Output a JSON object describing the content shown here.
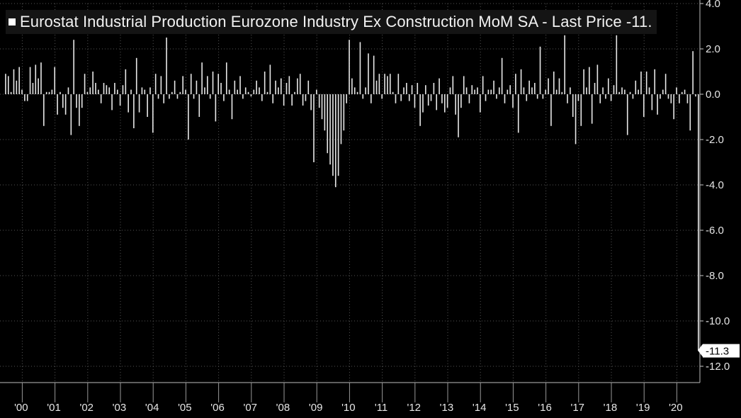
{
  "legend": {
    "text": "Eurostat Industrial Production Eurozone Industry Ex Construction MoM SA - Last Price -11."
  },
  "colors": {
    "background": "#000000",
    "bars": "#e8e8e8",
    "grid": "#555555",
    "last_label_bg": "#ffffff"
  },
  "chart_data": {
    "type": "bar",
    "title": "Eurostat Industrial Production Eurozone Industry Ex Construction MoM SA - Last Price -11.",
    "ylim": [
      -12.8,
      4.0
    ],
    "yticks": [
      {
        "value": 4.0,
        "label": "4.0"
      },
      {
        "value": 2.0,
        "label": "2.0"
      },
      {
        "value": 0.0,
        "label": "0.0"
      },
      {
        "value": -2.0,
        "label": "-2.0"
      },
      {
        "value": -4.0,
        "label": "-4.0"
      },
      {
        "value": -6.0,
        "label": "-6.0"
      },
      {
        "value": -8.0,
        "label": "-8.0"
      },
      {
        "value": -10.0,
        "label": "-10.0"
      },
      {
        "value": -12.0,
        "label": "-12.0"
      }
    ],
    "xticks": [
      "'00",
      "'01",
      "'02",
      "'03",
      "'04",
      "'05",
      "'06",
      "'07",
      "'08",
      "'09",
      "'10",
      "'11",
      "'12",
      "'13",
      "'14",
      "'15",
      "'16",
      "'17",
      "'18",
      "'19",
      "'20"
    ],
    "grid": true,
    "y_axis_side": "right",
    "last_value": {
      "value": -11.3,
      "label": "-11.3"
    },
    "start": "2000-01",
    "values": [
      0.9,
      0.8,
      0.1,
      1.1,
      0.6,
      1.2,
      0.2,
      -0.3,
      -0.3,
      1.2,
      0.5,
      1.3,
      0.7,
      1.4,
      -1.4,
      0.1,
      0.1,
      0.2,
      1.2,
      -0.9,
      0.1,
      -0.6,
      -0.9,
      0.3,
      -1.8,
      2.4,
      -0.6,
      -1.4,
      -0.6,
      0.9,
      0.1,
      0.3,
      1.0,
      0.5,
      0.2,
      -0.4,
      0.5,
      0.4,
      0.3,
      -0.7,
      0.5,
      0.2,
      -0.5,
      0.4,
      1.1,
      -0.8,
      0.2,
      -1.5,
      1.6,
      -0.8,
      0.3,
      0.2,
      -1.0,
      0.3,
      -1.7,
      0.9,
      -0.2,
      0.8,
      -0.4,
      2.5,
      -0.2,
      0.1,
      0.6,
      -0.2,
      0.1,
      0.8,
      0.2,
      -2.0,
      0.9,
      -0.2,
      0.6,
      -1.0,
      1.4,
      0.3,
      0.8,
      -0.2,
      1.0,
      -1.2,
      0.9,
      0.5,
      -0.3,
      1.4,
      0.2,
      -1.1,
      0.6,
      0.2,
      0.8,
      -0.2,
      0.3,
      0.1,
      -0.1,
      0.2,
      0.6,
      0.3,
      -0.3,
      1.0,
      0.1,
      1.3,
      -0.4,
      0.6,
      0.3,
      0.7,
      -0.5,
      0.5,
      0.8,
      -0.5,
      0.1,
      0.7,
      0.9,
      -0.5,
      -0.3,
      0.6,
      -0.7,
      -3.0,
      0.2,
      -0.6,
      -1.1,
      -1.6,
      -2.6,
      -3.1,
      -3.6,
      -4.1,
      -3.6,
      -2.2,
      -1.6,
      -0.4,
      2.4,
      0.7,
      0.3,
      0.1,
      2.3,
      -0.2,
      0.3,
      1.8,
      -0.4,
      1.7,
      0.6,
      0.9,
      -0.2,
      0.9,
      0.8,
      0.9,
      0.1,
      -0.4,
      0.9,
      -0.3,
      0.3,
      0.5,
      -0.3,
      0.4,
      -0.6,
      0.5,
      -1.4,
      -0.8,
      0.4,
      -0.5,
      -0.3,
      0.5,
      -0.7,
      0.7,
      -0.4,
      -0.8,
      -0.6,
      0.3,
      0.8,
      -0.9,
      -1.9,
      -0.6,
      0.8,
      0.3,
      -0.4,
      0.4,
      0.2,
      0.3,
      -0.8,
      0.8,
      -0.3,
      0.2,
      0.2,
      0.6,
      -0.2,
      0.3,
      1.6,
      -0.4,
      0.2,
      0.4,
      -0.6,
      0.9,
      -1.7,
      1.1,
      0.3,
      -0.3,
      0.6,
      0.3,
      0.5,
      -0.2,
      2.1,
      -0.2,
      0.2,
      0.7,
      -1.4,
      1.0,
      0.2,
      0.7,
      0.1,
      2.6,
      -0.4,
      0.3,
      -1.0,
      -2.2,
      -0.3,
      -1.4,
      1.1,
      0.3,
      1.2,
      -1.3,
      0.5,
      1.3,
      -0.4,
      0.3,
      -0.2,
      0.7,
      -0.3,
      0.4,
      2.6,
      0.1,
      0.3,
      0.2,
      -1.8,
      0.1,
      -0.2,
      0.6,
      0.2,
      1.0,
      -1.0,
      1.0,
      0.3,
      -0.7,
      1.1,
      -0.9,
      -0.2,
      0.2,
      0.9,
      -0.2,
      -0.4,
      -1.1,
      0.3,
      -0.4,
      0.1,
      0.2,
      -0.4,
      -1.6,
      1.9,
      -0.1,
      -11.3
    ]
  }
}
